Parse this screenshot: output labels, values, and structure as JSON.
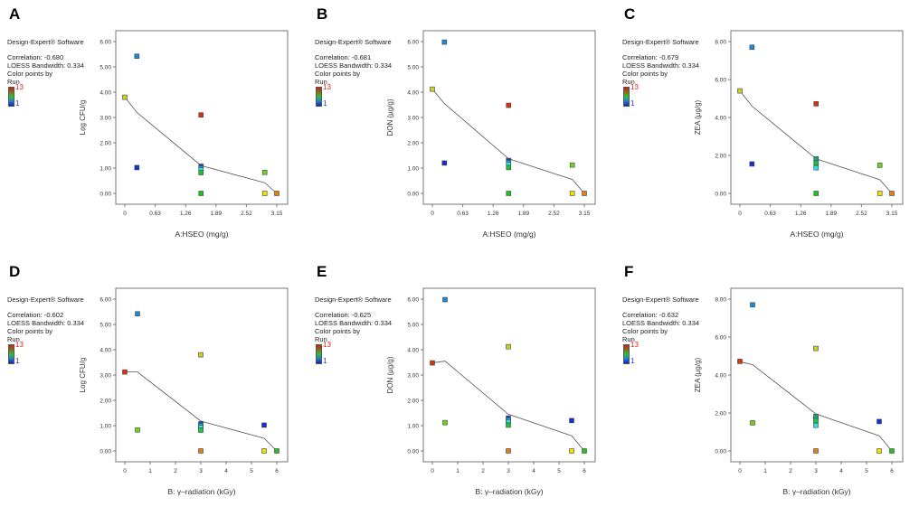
{
  "software": "Design-Expert® Software",
  "bandwidth_text": "LOESS Bandwidth: 0.334",
  "color_by_1": "Color points by",
  "color_by_2": "Run",
  "legend_max": "13",
  "legend_min": "1",
  "chart_data": [
    {
      "panel": "A",
      "type": "scatter",
      "correlation": "Correlation: -0.680",
      "xlabel": "A:HSEO (mg/g)",
      "ylabel": "Log CFU/g",
      "xlim": [
        0,
        3.15
      ],
      "ylim": [
        0,
        6
      ],
      "xticks": [
        "0",
        "0.63",
        "1.26",
        "1.89",
        "2.52",
        "3.15"
      ],
      "yticks": [
        "0.00",
        "1.00",
        "2.00",
        "3.00",
        "4.00",
        "5.00",
        "6.00"
      ],
      "points": [
        {
          "x": 0.25,
          "y": 1.02,
          "color": "#1030d0"
        },
        {
          "x": 0.25,
          "y": 5.42,
          "color": "#1a8ad8"
        },
        {
          "x": 0,
          "y": 3.8,
          "color": "#c8d020"
        },
        {
          "x": 1.58,
          "y": 3.1,
          "color": "#d83010"
        },
        {
          "x": 2.9,
          "y": 0.83,
          "color": "#70d020"
        },
        {
          "x": 2.9,
          "y": 0,
          "color": "#f0e000"
        },
        {
          "x": 3.15,
          "y": 0,
          "color": "#e08010"
        },
        {
          "x": 1.58,
          "y": 0,
          "color": "#20c020"
        },
        {
          "x": 1.58,
          "y": 1.07,
          "color": "#1040c8"
        },
        {
          "x": 1.58,
          "y": 1.0,
          "color": "#18a0d0"
        },
        {
          "x": 1.58,
          "y": 0.93,
          "color": "#30e0e0"
        },
        {
          "x": 1.58,
          "y": 0.82,
          "color": "#20c040"
        }
      ],
      "loess": [
        [
          0,
          3.8
        ],
        [
          0.25,
          3.2
        ],
        [
          1.58,
          1.1
        ],
        [
          2.9,
          0.42
        ],
        [
          3.15,
          0
        ]
      ]
    },
    {
      "panel": "B",
      "type": "scatter",
      "correlation": "Correlation: -0.681",
      "xlabel": "A:HSEO (mg/g)",
      "ylabel": "DON (µg/g)",
      "xlim": [
        0,
        3.15
      ],
      "ylim": [
        0,
        6
      ],
      "xticks": [
        "0",
        "0.63",
        "1.26",
        "1.89",
        "2.52",
        "3.15"
      ],
      "yticks": [
        "0.00",
        "1.00",
        "2.00",
        "3.00",
        "4.00",
        "5.00",
        "6.00"
      ],
      "points": [
        {
          "x": 0.25,
          "y": 1.2,
          "color": "#1030d0"
        },
        {
          "x": 0.25,
          "y": 5.98,
          "color": "#1a8ad8"
        },
        {
          "x": 0,
          "y": 4.12,
          "color": "#c8d020"
        },
        {
          "x": 1.58,
          "y": 3.48,
          "color": "#d83010"
        },
        {
          "x": 2.9,
          "y": 1.12,
          "color": "#70d020"
        },
        {
          "x": 2.9,
          "y": 0,
          "color": "#f0e000"
        },
        {
          "x": 3.15,
          "y": 0,
          "color": "#e08010"
        },
        {
          "x": 1.58,
          "y": 0,
          "color": "#20c020"
        },
        {
          "x": 1.58,
          "y": 1.3,
          "color": "#1040c8"
        },
        {
          "x": 1.58,
          "y": 1.22,
          "color": "#18a0d0"
        },
        {
          "x": 1.58,
          "y": 1.15,
          "color": "#30e0e0"
        },
        {
          "x": 1.58,
          "y": 1.02,
          "color": "#20c040"
        }
      ],
      "loess": [
        [
          0,
          4.12
        ],
        [
          0.25,
          3.55
        ],
        [
          1.58,
          1.37
        ],
        [
          2.9,
          0.55
        ],
        [
          3.15,
          0
        ]
      ]
    },
    {
      "panel": "C",
      "type": "scatter",
      "correlation": "Correlation: -0.679",
      "xlabel": "A:HSEO (mg/g)",
      "ylabel": "ZEA (µg/g)",
      "xlim": [
        0,
        3.15
      ],
      "ylim": [
        0,
        8
      ],
      "xticks": [
        "0",
        "0.63",
        "1.26",
        "1.89",
        "2.52",
        "3.15"
      ],
      "yticks": [
        "0.00",
        "2.00",
        "4.00",
        "6.00",
        "8.00"
      ],
      "points": [
        {
          "x": 0.25,
          "y": 1.55,
          "color": "#1030d0"
        },
        {
          "x": 0.25,
          "y": 7.7,
          "color": "#1a8ad8"
        },
        {
          "x": 0,
          "y": 5.4,
          "color": "#c8d020"
        },
        {
          "x": 1.58,
          "y": 4.72,
          "color": "#d83010"
        },
        {
          "x": 2.9,
          "y": 1.48,
          "color": "#70d020"
        },
        {
          "x": 2.9,
          "y": 0,
          "color": "#f0e000"
        },
        {
          "x": 3.15,
          "y": 0,
          "color": "#e08010"
        },
        {
          "x": 1.58,
          "y": 0,
          "color": "#20c020"
        },
        {
          "x": 1.58,
          "y": 1.72,
          "color": "#1040c8"
        },
        {
          "x": 1.58,
          "y": 1.82,
          "color": "#18a080"
        },
        {
          "x": 1.58,
          "y": 1.35,
          "color": "#30e0e0"
        },
        {
          "x": 1.58,
          "y": 1.6,
          "color": "#20c040"
        }
      ],
      "loess": [
        [
          0,
          5.4
        ],
        [
          0.25,
          4.6
        ],
        [
          1.58,
          1.82
        ],
        [
          2.9,
          0.72
        ],
        [
          3.15,
          0
        ]
      ]
    },
    {
      "panel": "D",
      "type": "scatter",
      "correlation": "Correlation: -0.602",
      "xlabel": "B: γ–radiation (kGy)",
      "ylabel": "Log CFU/g",
      "xlim": [
        0,
        6
      ],
      "ylim": [
        0,
        6
      ],
      "xticks": [
        "0",
        "1",
        "2",
        "3",
        "4",
        "5",
        "6"
      ],
      "yticks": [
        "0.00",
        "1.00",
        "2.00",
        "3.00",
        "4.00",
        "5.00",
        "6.00"
      ],
      "points": [
        {
          "x": 5.5,
          "y": 1.02,
          "color": "#1030d0"
        },
        {
          "x": 0.5,
          "y": 5.42,
          "color": "#1a8ad8"
        },
        {
          "x": 3,
          "y": 3.8,
          "color": "#c8d020"
        },
        {
          "x": 0,
          "y": 3.12,
          "color": "#d83010"
        },
        {
          "x": 0.5,
          "y": 0.83,
          "color": "#70d020"
        },
        {
          "x": 5.5,
          "y": 0,
          "color": "#f0e000"
        },
        {
          "x": 3,
          "y": 0,
          "color": "#e08010"
        },
        {
          "x": 6,
          "y": 0,
          "color": "#20c020"
        },
        {
          "x": 3,
          "y": 1.07,
          "color": "#1040c8"
        },
        {
          "x": 3,
          "y": 1.0,
          "color": "#18a0d0"
        },
        {
          "x": 3,
          "y": 0.93,
          "color": "#30e0e0"
        },
        {
          "x": 3,
          "y": 0.82,
          "color": "#20c040"
        }
      ],
      "loess": [
        [
          0,
          3.12
        ],
        [
          0.5,
          3.12
        ],
        [
          3,
          1.18
        ],
        [
          5.5,
          0.5
        ],
        [
          6,
          0
        ]
      ]
    },
    {
      "panel": "E",
      "type": "scatter",
      "correlation": "Correlation: -0.625",
      "xlabel": "B: γ–radiation (kGy)",
      "ylabel": "DON (µg/g)",
      "xlim": [
        0,
        6
      ],
      "ylim": [
        0,
        6
      ],
      "xticks": [
        "0",
        "1",
        "2",
        "3",
        "4",
        "5",
        "6"
      ],
      "yticks": [
        "0.00",
        "1.00",
        "2.00",
        "3.00",
        "4.00",
        "5.00",
        "6.00"
      ],
      "points": [
        {
          "x": 5.5,
          "y": 1.2,
          "color": "#1030d0"
        },
        {
          "x": 0.5,
          "y": 5.98,
          "color": "#1a8ad8"
        },
        {
          "x": 3,
          "y": 4.12,
          "color": "#c8d020"
        },
        {
          "x": 0,
          "y": 3.48,
          "color": "#d83010"
        },
        {
          "x": 0.5,
          "y": 1.12,
          "color": "#70d020"
        },
        {
          "x": 5.5,
          "y": 0,
          "color": "#f0e000"
        },
        {
          "x": 3,
          "y": 0,
          "color": "#e08010"
        },
        {
          "x": 6,
          "y": 0,
          "color": "#20c020"
        },
        {
          "x": 3,
          "y": 1.3,
          "color": "#1040c8"
        },
        {
          "x": 3,
          "y": 1.22,
          "color": "#18a0d0"
        },
        {
          "x": 3,
          "y": 1.15,
          "color": "#30e0e0"
        },
        {
          "x": 3,
          "y": 1.02,
          "color": "#20c040"
        }
      ],
      "loess": [
        [
          0,
          3.48
        ],
        [
          0.5,
          3.55
        ],
        [
          3,
          1.45
        ],
        [
          5.5,
          0.6
        ],
        [
          6,
          0
        ]
      ]
    },
    {
      "panel": "F",
      "type": "scatter",
      "correlation": "Correlation: -0.632",
      "xlabel": "B: γ–radiation (kGy)",
      "ylabel": "ZEA (µg/g)",
      "xlim": [
        0,
        6
      ],
      "ylim": [
        0,
        8
      ],
      "xticks": [
        "0",
        "1",
        "2",
        "3",
        "4",
        "5",
        "6"
      ],
      "yticks": [
        "0.00",
        "2.00",
        "4.00",
        "6.00",
        "8.00"
      ],
      "points": [
        {
          "x": 5.5,
          "y": 1.55,
          "color": "#1030d0"
        },
        {
          "x": 0.5,
          "y": 7.7,
          "color": "#1a8ad8"
        },
        {
          "x": 3,
          "y": 5.4,
          "color": "#c8d020"
        },
        {
          "x": 0,
          "y": 4.72,
          "color": "#d83010"
        },
        {
          "x": 0.5,
          "y": 1.48,
          "color": "#70d020"
        },
        {
          "x": 5.5,
          "y": 0,
          "color": "#f0e000"
        },
        {
          "x": 3,
          "y": 0,
          "color": "#e08010"
        },
        {
          "x": 6,
          "y": 0,
          "color": "#20c020"
        },
        {
          "x": 3,
          "y": 1.72,
          "color": "#1040c8"
        },
        {
          "x": 3,
          "y": 1.82,
          "color": "#18a080"
        },
        {
          "x": 3,
          "y": 1.35,
          "color": "#30e0e0"
        },
        {
          "x": 3,
          "y": 1.6,
          "color": "#20c040"
        }
      ],
      "loess": [
        [
          0,
          4.7
        ],
        [
          0.5,
          4.55
        ],
        [
          3,
          1.95
        ],
        [
          5.5,
          0.8
        ],
        [
          6,
          0
        ]
      ]
    }
  ]
}
